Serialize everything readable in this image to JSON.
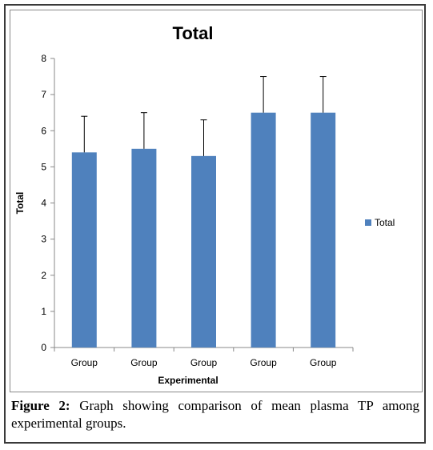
{
  "chart_data": {
    "type": "bar",
    "title": "Total",
    "xlabel": "Experimental",
    "ylabel": "Total",
    "categories": [
      "Group",
      "Group",
      "Group",
      "Group",
      "Group"
    ],
    "series": [
      {
        "name": "Total",
        "values": [
          5.4,
          5.5,
          5.3,
          6.5,
          6.5
        ],
        "error": [
          1.0,
          1.0,
          1.0,
          1.0,
          1.0
        ],
        "color": "#4f81bd"
      }
    ],
    "ylim": [
      0,
      8
    ],
    "yticks": [
      "0",
      "1",
      "2",
      "3",
      "4",
      "5",
      "6",
      "7",
      "8"
    ],
    "grid": false,
    "legend": "right"
  },
  "caption": {
    "label": "Figure 2:",
    "text": "Graph showing comparison of mean plasma TP among experimental groups."
  }
}
